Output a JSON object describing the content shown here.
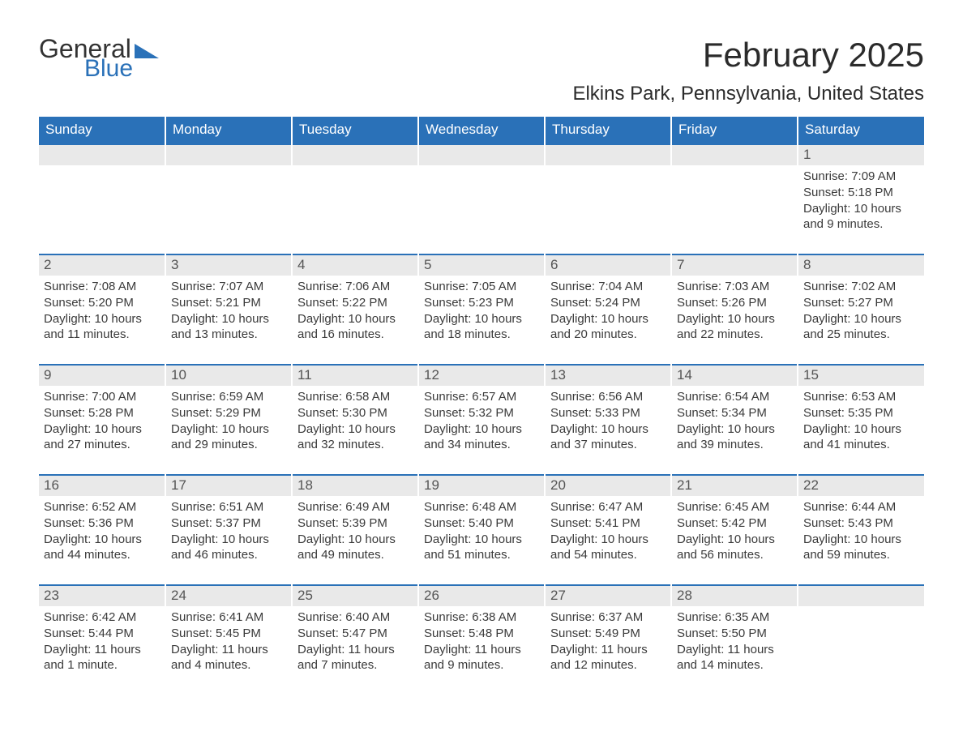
{
  "styling": {
    "header_bg": "#2a71b8",
    "header_fg": "#ffffff",
    "daynum_bg": "#e9e9e9",
    "daynum_fg": "#555555",
    "row_divider": "#2a71b8",
    "body_text": "#3a3a3a",
    "page_bg": "#ffffff",
    "logo_blue": "#2a71b8",
    "month_title_fontsize": 42,
    "location_fontsize": 24,
    "header_fontsize": 17,
    "daynum_fontsize": 17,
    "body_fontsize": 15
  },
  "logo": {
    "line1": "General",
    "line2": "Blue"
  },
  "title": "February 2025",
  "location": "Elkins Park, Pennsylvania, United States",
  "weekdays": [
    "Sunday",
    "Monday",
    "Tuesday",
    "Wednesday",
    "Thursday",
    "Friday",
    "Saturday"
  ],
  "weeks": [
    [
      {
        "blank": true
      },
      {
        "blank": true
      },
      {
        "blank": true
      },
      {
        "blank": true
      },
      {
        "blank": true
      },
      {
        "blank": true
      },
      {
        "day": "1",
        "sunrise": "Sunrise: 7:09 AM",
        "sunset": "Sunset: 5:18 PM",
        "daylight": "Daylight: 10 hours and 9 minutes."
      }
    ],
    [
      {
        "day": "2",
        "sunrise": "Sunrise: 7:08 AM",
        "sunset": "Sunset: 5:20 PM",
        "daylight": "Daylight: 10 hours and 11 minutes."
      },
      {
        "day": "3",
        "sunrise": "Sunrise: 7:07 AM",
        "sunset": "Sunset: 5:21 PM",
        "daylight": "Daylight: 10 hours and 13 minutes."
      },
      {
        "day": "4",
        "sunrise": "Sunrise: 7:06 AM",
        "sunset": "Sunset: 5:22 PM",
        "daylight": "Daylight: 10 hours and 16 minutes."
      },
      {
        "day": "5",
        "sunrise": "Sunrise: 7:05 AM",
        "sunset": "Sunset: 5:23 PM",
        "daylight": "Daylight: 10 hours and 18 minutes."
      },
      {
        "day": "6",
        "sunrise": "Sunrise: 7:04 AM",
        "sunset": "Sunset: 5:24 PM",
        "daylight": "Daylight: 10 hours and 20 minutes."
      },
      {
        "day": "7",
        "sunrise": "Sunrise: 7:03 AM",
        "sunset": "Sunset: 5:26 PM",
        "daylight": "Daylight: 10 hours and 22 minutes."
      },
      {
        "day": "8",
        "sunrise": "Sunrise: 7:02 AM",
        "sunset": "Sunset: 5:27 PM",
        "daylight": "Daylight: 10 hours and 25 minutes."
      }
    ],
    [
      {
        "day": "9",
        "sunrise": "Sunrise: 7:00 AM",
        "sunset": "Sunset: 5:28 PM",
        "daylight": "Daylight: 10 hours and 27 minutes."
      },
      {
        "day": "10",
        "sunrise": "Sunrise: 6:59 AM",
        "sunset": "Sunset: 5:29 PM",
        "daylight": "Daylight: 10 hours and 29 minutes."
      },
      {
        "day": "11",
        "sunrise": "Sunrise: 6:58 AM",
        "sunset": "Sunset: 5:30 PM",
        "daylight": "Daylight: 10 hours and 32 minutes."
      },
      {
        "day": "12",
        "sunrise": "Sunrise: 6:57 AM",
        "sunset": "Sunset: 5:32 PM",
        "daylight": "Daylight: 10 hours and 34 minutes."
      },
      {
        "day": "13",
        "sunrise": "Sunrise: 6:56 AM",
        "sunset": "Sunset: 5:33 PM",
        "daylight": "Daylight: 10 hours and 37 minutes."
      },
      {
        "day": "14",
        "sunrise": "Sunrise: 6:54 AM",
        "sunset": "Sunset: 5:34 PM",
        "daylight": "Daylight: 10 hours and 39 minutes."
      },
      {
        "day": "15",
        "sunrise": "Sunrise: 6:53 AM",
        "sunset": "Sunset: 5:35 PM",
        "daylight": "Daylight: 10 hours and 41 minutes."
      }
    ],
    [
      {
        "day": "16",
        "sunrise": "Sunrise: 6:52 AM",
        "sunset": "Sunset: 5:36 PM",
        "daylight": "Daylight: 10 hours and 44 minutes."
      },
      {
        "day": "17",
        "sunrise": "Sunrise: 6:51 AM",
        "sunset": "Sunset: 5:37 PM",
        "daylight": "Daylight: 10 hours and 46 minutes."
      },
      {
        "day": "18",
        "sunrise": "Sunrise: 6:49 AM",
        "sunset": "Sunset: 5:39 PM",
        "daylight": "Daylight: 10 hours and 49 minutes."
      },
      {
        "day": "19",
        "sunrise": "Sunrise: 6:48 AM",
        "sunset": "Sunset: 5:40 PM",
        "daylight": "Daylight: 10 hours and 51 minutes."
      },
      {
        "day": "20",
        "sunrise": "Sunrise: 6:47 AM",
        "sunset": "Sunset: 5:41 PM",
        "daylight": "Daylight: 10 hours and 54 minutes."
      },
      {
        "day": "21",
        "sunrise": "Sunrise: 6:45 AM",
        "sunset": "Sunset: 5:42 PM",
        "daylight": "Daylight: 10 hours and 56 minutes."
      },
      {
        "day": "22",
        "sunrise": "Sunrise: 6:44 AM",
        "sunset": "Sunset: 5:43 PM",
        "daylight": "Daylight: 10 hours and 59 minutes."
      }
    ],
    [
      {
        "day": "23",
        "sunrise": "Sunrise: 6:42 AM",
        "sunset": "Sunset: 5:44 PM",
        "daylight": "Daylight: 11 hours and 1 minute."
      },
      {
        "day": "24",
        "sunrise": "Sunrise: 6:41 AM",
        "sunset": "Sunset: 5:45 PM",
        "daylight": "Daylight: 11 hours and 4 minutes."
      },
      {
        "day": "25",
        "sunrise": "Sunrise: 6:40 AM",
        "sunset": "Sunset: 5:47 PM",
        "daylight": "Daylight: 11 hours and 7 minutes."
      },
      {
        "day": "26",
        "sunrise": "Sunrise: 6:38 AM",
        "sunset": "Sunset: 5:48 PM",
        "daylight": "Daylight: 11 hours and 9 minutes."
      },
      {
        "day": "27",
        "sunrise": "Sunrise: 6:37 AM",
        "sunset": "Sunset: 5:49 PM",
        "daylight": "Daylight: 11 hours and 12 minutes."
      },
      {
        "day": "28",
        "sunrise": "Sunrise: 6:35 AM",
        "sunset": "Sunset: 5:50 PM",
        "daylight": "Daylight: 11 hours and 14 minutes."
      },
      {
        "blank": true
      }
    ]
  ]
}
